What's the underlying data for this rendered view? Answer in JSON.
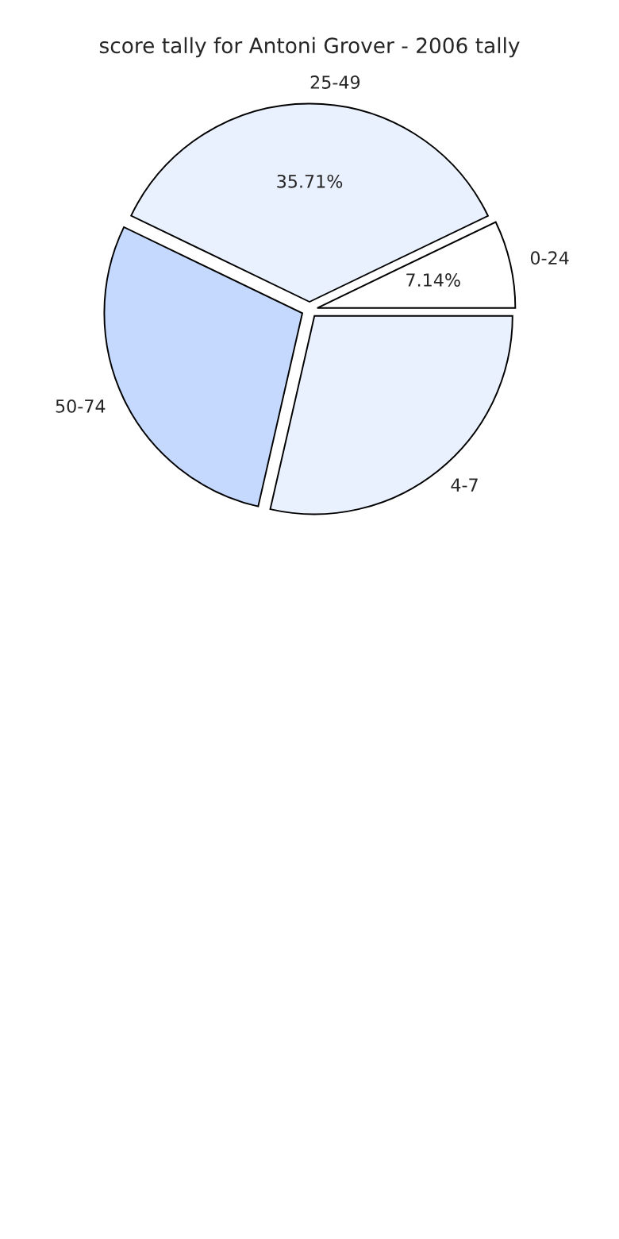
{
  "chart_data": {
    "type": "pie",
    "title": "score tally for Antoni Grover - 2006 tally",
    "categories": [
      "0-24",
      "25-49",
      "50-74",
      "4-7"
    ],
    "values": [
      7.14,
      35.71,
      28.57,
      28.58
    ],
    "colors": [
      "#ffffff",
      "#eaf1fe",
      "#c5d9fe",
      "#eaf1fe"
    ],
    "value_labels": [
      "7.14%",
      "35.71%",
      null,
      null
    ]
  }
}
